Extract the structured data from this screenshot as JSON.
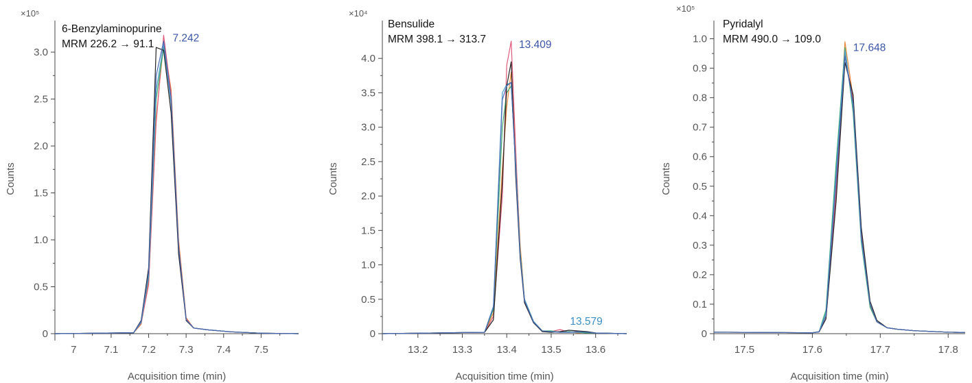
{
  "colors": {
    "traces": [
      "#e8883a",
      "#e05a7a",
      "#3aaa6a",
      "#4aa0c8",
      "#222222",
      "#4a6ab8"
    ],
    "axis": "#444444",
    "tick_text": "#555555",
    "peak_label_primary": "#3a55a8",
    "peak_label_secondary": "#3a8fc8"
  },
  "chart_data": [
    {
      "type": "line",
      "title": "6-Benzylaminopurine",
      "subtitle": "MRM 226.2 → 91.1",
      "xlabel": "Acquisition time (min)",
      "ylabel": "Counts",
      "y_multiplier": "×10⁵",
      "xlim": [
        6.95,
        7.6
      ],
      "ylim": [
        0,
        3.3
      ],
      "x_ticks": [
        7.0,
        7.1,
        7.2,
        7.3,
        7.4,
        7.5
      ],
      "x_tick_labels": [
        "7",
        "7.1",
        "7.2",
        "7.3",
        "7.4",
        "7.5"
      ],
      "y_ticks": [
        0,
        0.5,
        1.0,
        1.5,
        2.0,
        2.5,
        3.0
      ],
      "y_tick_labels": [
        "0",
        "0.5",
        "1.0",
        "1.5",
        "2.0",
        "2.5",
        "3.0"
      ],
      "annotations": [
        {
          "text": "7.242",
          "x": 7.242,
          "y": 3.15,
          "color": "#3a55a8"
        }
      ],
      "series": [
        {
          "color": "#e8883a",
          "x": [
            6.95,
            7.16,
            7.18,
            7.2,
            7.22,
            7.24,
            7.26,
            7.28,
            7.3,
            7.32,
            7.36,
            7.42,
            7.5,
            7.6
          ],
          "y": [
            0,
            0.01,
            0.1,
            0.55,
            2.3,
            3.1,
            2.6,
            1.0,
            0.17,
            0.06,
            0.04,
            0.02,
            0.005,
            0
          ]
        },
        {
          "color": "#e05a7a",
          "x": [
            6.95,
            7.16,
            7.18,
            7.2,
            7.22,
            7.24,
            7.26,
            7.28,
            7.3,
            7.32,
            7.36,
            7.42,
            7.5,
            7.6
          ],
          "y": [
            0,
            0.01,
            0.11,
            0.52,
            2.25,
            3.18,
            2.55,
            0.95,
            0.16,
            0.06,
            0.04,
            0.02,
            0.005,
            0
          ]
        },
        {
          "color": "#3aaa6a",
          "x": [
            6.95,
            7.16,
            7.18,
            7.2,
            7.22,
            7.24,
            7.26,
            7.28,
            7.3,
            7.32,
            7.36,
            7.42,
            7.5,
            7.6
          ],
          "y": [
            0,
            0.01,
            0.12,
            0.6,
            2.5,
            3.05,
            2.5,
            0.92,
            0.15,
            0.06,
            0.04,
            0.02,
            0.005,
            0
          ]
        },
        {
          "color": "#4aa0c8",
          "x": [
            6.95,
            7.16,
            7.18,
            7.2,
            7.22,
            7.24,
            7.26,
            7.28,
            7.3,
            7.32,
            7.36,
            7.42,
            7.5,
            7.6
          ],
          "y": [
            0,
            0.01,
            0.12,
            0.62,
            2.6,
            3.08,
            2.45,
            0.9,
            0.15,
            0.06,
            0.04,
            0.02,
            0.005,
            0
          ]
        },
        {
          "color": "#222222",
          "x": [
            6.95,
            7.16,
            7.18,
            7.2,
            7.22,
            7.24,
            7.26,
            7.28,
            7.3,
            7.32,
            7.36,
            7.42,
            7.5,
            7.6
          ],
          "y": [
            0,
            0.01,
            0.14,
            0.7,
            3.05,
            3.02,
            2.35,
            0.85,
            0.14,
            0.06,
            0.04,
            0.02,
            0.005,
            0
          ]
        },
        {
          "color": "#4a6ab8",
          "x": [
            6.95,
            7.16,
            7.18,
            7.2,
            7.22,
            7.24,
            7.26,
            7.28,
            7.3,
            7.32,
            7.36,
            7.42,
            7.5,
            7.6
          ],
          "y": [
            0,
            0.01,
            0.13,
            0.65,
            2.75,
            3.12,
            2.5,
            0.93,
            0.15,
            0.06,
            0.04,
            0.02,
            0.005,
            0
          ]
        }
      ]
    },
    {
      "type": "line",
      "title": "Bensulide",
      "subtitle": "MRM 398.1 → 313.7",
      "xlabel": "Acquisition time (min)",
      "ylabel": "Counts",
      "y_multiplier": "×10⁴",
      "xlim": [
        13.12,
        13.67
      ],
      "ylim": [
        0,
        4.5
      ],
      "x_ticks": [
        13.2,
        13.3,
        13.4,
        13.5,
        13.6
      ],
      "x_tick_labels": [
        "13.2",
        "13.3",
        "13.4",
        "13.5",
        "13.6"
      ],
      "y_ticks": [
        0,
        0.5,
        1.0,
        1.5,
        2.0,
        2.5,
        3.0,
        3.5,
        4.0
      ],
      "y_tick_labels": [
        "0",
        "0.5",
        "1.0",
        "1.5",
        "2.0",
        "2.5",
        "3.0",
        "3.5",
        "4.0"
      ],
      "annotations": [
        {
          "text": "13.409",
          "x": 13.409,
          "y": 4.2,
          "color": "#3a55a8"
        },
        {
          "text": "13.579",
          "x": 13.579,
          "y": 0.1,
          "color": "#3a8fc8"
        }
      ],
      "series": [
        {
          "color": "#e8883a",
          "x": [
            13.12,
            13.35,
            13.37,
            13.39,
            13.4,
            13.41,
            13.42,
            13.43,
            13.44,
            13.46,
            13.48,
            13.5,
            13.52,
            13.54,
            13.56,
            13.58,
            13.6,
            13.67
          ],
          "y": [
            0,
            0.02,
            0.3,
            2.4,
            3.3,
            3.8,
            2.6,
            1.3,
            0.5,
            0.18,
            0.04,
            0.03,
            0.02,
            0.03,
            0.01,
            0.02,
            0.01,
            0
          ]
        },
        {
          "color": "#e05a7a",
          "x": [
            13.12,
            13.35,
            13.37,
            13.39,
            13.4,
            13.41,
            13.42,
            13.43,
            13.44,
            13.46,
            13.48,
            13.5,
            13.52,
            13.54,
            13.56,
            13.58,
            13.6,
            13.67
          ],
          "y": [
            0,
            0.02,
            0.25,
            2.0,
            3.9,
            4.25,
            2.7,
            1.2,
            0.45,
            0.17,
            0.04,
            0.03,
            0.06,
            0.02,
            0.03,
            0.02,
            0.01,
            0
          ]
        },
        {
          "color": "#3aaa6a",
          "x": [
            13.12,
            13.35,
            13.37,
            13.39,
            13.4,
            13.41,
            13.42,
            13.43,
            13.44,
            13.46,
            13.48,
            13.5,
            13.52,
            13.54,
            13.56,
            13.58,
            13.6,
            13.67
          ],
          "y": [
            0,
            0.02,
            0.35,
            3.0,
            3.5,
            3.6,
            2.5,
            1.2,
            0.5,
            0.18,
            0.04,
            0.04,
            0.02,
            0.03,
            0.02,
            0.01,
            0.01,
            0
          ]
        },
        {
          "color": "#4aa0c8",
          "x": [
            13.12,
            13.35,
            13.37,
            13.39,
            13.4,
            13.41,
            13.42,
            13.43,
            13.44,
            13.46,
            13.48,
            13.5,
            13.52,
            13.54,
            13.56,
            13.58,
            13.6,
            13.67
          ],
          "y": [
            0,
            0.02,
            0.4,
            3.5,
            3.62,
            3.65,
            2.45,
            1.15,
            0.5,
            0.18,
            0.04,
            0.03,
            0.02,
            0.02,
            0.02,
            0.03,
            0.01,
            0
          ]
        },
        {
          "color": "#222222",
          "x": [
            13.12,
            13.35,
            13.37,
            13.39,
            13.4,
            13.41,
            13.42,
            13.43,
            13.44,
            13.46,
            13.48,
            13.5,
            13.52,
            13.54,
            13.56,
            13.58,
            13.6,
            13.67
          ],
          "y": [
            0,
            0.02,
            0.2,
            2.2,
            3.6,
            3.95,
            2.3,
            1.1,
            0.45,
            0.16,
            0.03,
            0.02,
            0.03,
            0.05,
            0.04,
            0.03,
            0.01,
            0
          ]
        },
        {
          "color": "#4a6ab8",
          "x": [
            13.12,
            13.35,
            13.37,
            13.39,
            13.4,
            13.41,
            13.42,
            13.43,
            13.44,
            13.46,
            13.48,
            13.5,
            13.52,
            13.54,
            13.56,
            13.58,
            13.6,
            13.67
          ],
          "y": [
            0,
            0.02,
            0.38,
            3.4,
            3.6,
            3.65,
            2.4,
            1.15,
            0.48,
            0.17,
            0.04,
            0.03,
            0.02,
            0.02,
            0.03,
            0.02,
            0.01,
            0
          ]
        }
      ]
    },
    {
      "type": "line",
      "title": "Pyridalyl",
      "subtitle": "MRM 490.0 → 109.0",
      "xlabel": "Acquisition time (min)",
      "ylabel": "Counts",
      "y_multiplier": "×10⁵",
      "xlim": [
        17.455,
        17.825
      ],
      "ylim": [
        0,
        1.05
      ],
      "x_ticks": [
        17.5,
        17.6,
        17.7,
        17.8
      ],
      "x_tick_labels": [
        "17.5",
        "17.6",
        "17.7",
        "17.8"
      ],
      "y_ticks": [
        0,
        0.1,
        0.2,
        0.3,
        0.4,
        0.5,
        0.6,
        0.7,
        0.8,
        0.9,
        1.0
      ],
      "y_tick_labels": [
        "0",
        "0.1",
        "0.2",
        "0.3",
        "0.4",
        "0.5",
        "0.6",
        "0.7",
        "0.8",
        "0.9",
        "1.0"
      ],
      "annotations": [
        {
          "text": "17.648",
          "x": 17.648,
          "y": 0.97,
          "color": "#3a55a8"
        }
      ],
      "series": [
        {
          "color": "#e8883a",
          "x": [
            17.455,
            17.6,
            17.61,
            17.62,
            17.635,
            17.648,
            17.66,
            17.672,
            17.685,
            17.695,
            17.71,
            17.725,
            17.75,
            17.8,
            17.825
          ],
          "y": [
            0.005,
            0.003,
            0.006,
            0.06,
            0.5,
            0.99,
            0.8,
            0.33,
            0.09,
            0.04,
            0.02,
            0.015,
            0.01,
            0.005,
            0.004
          ]
        },
        {
          "color": "#e05a7a",
          "x": [
            17.455,
            17.6,
            17.61,
            17.62,
            17.635,
            17.648,
            17.66,
            17.672,
            17.685,
            17.695,
            17.71,
            17.725,
            17.75,
            17.8,
            17.825
          ],
          "y": [
            0.005,
            0.003,
            0.006,
            0.05,
            0.48,
            0.95,
            0.79,
            0.34,
            0.1,
            0.04,
            0.02,
            0.015,
            0.01,
            0.005,
            0.004
          ]
        },
        {
          "color": "#3aaa6a",
          "x": [
            17.455,
            17.6,
            17.61,
            17.62,
            17.635,
            17.648,
            17.66,
            17.672,
            17.685,
            17.695,
            17.71,
            17.725,
            17.75,
            17.8,
            17.825
          ],
          "y": [
            0.005,
            0.003,
            0.007,
            0.08,
            0.58,
            0.97,
            0.75,
            0.31,
            0.09,
            0.04,
            0.02,
            0.015,
            0.01,
            0.005,
            0.004
          ]
        },
        {
          "color": "#4aa0c8",
          "x": [
            17.455,
            17.6,
            17.61,
            17.62,
            17.635,
            17.648,
            17.66,
            17.672,
            17.685,
            17.695,
            17.71,
            17.725,
            17.75,
            17.8,
            17.825
          ],
          "y": [
            0.005,
            0.003,
            0.007,
            0.07,
            0.55,
            0.96,
            0.77,
            0.32,
            0.1,
            0.04,
            0.02,
            0.015,
            0.01,
            0.005,
            0.004
          ]
        },
        {
          "color": "#222222",
          "x": [
            17.455,
            17.6,
            17.61,
            17.62,
            17.635,
            17.648,
            17.66,
            17.672,
            17.685,
            17.695,
            17.71,
            17.725,
            17.75,
            17.8,
            17.825
          ],
          "y": [
            0.005,
            0.003,
            0.006,
            0.05,
            0.45,
            0.92,
            0.81,
            0.36,
            0.11,
            0.045,
            0.02,
            0.015,
            0.01,
            0.005,
            0.004
          ]
        },
        {
          "color": "#4a6ab8",
          "x": [
            17.455,
            17.6,
            17.61,
            17.62,
            17.635,
            17.648,
            17.66,
            17.672,
            17.685,
            17.695,
            17.71,
            17.725,
            17.75,
            17.8,
            17.825
          ],
          "y": [
            0.005,
            0.003,
            0.006,
            0.06,
            0.52,
            0.94,
            0.78,
            0.33,
            0.1,
            0.04,
            0.02,
            0.015,
            0.01,
            0.005,
            0.004
          ]
        }
      ]
    }
  ]
}
